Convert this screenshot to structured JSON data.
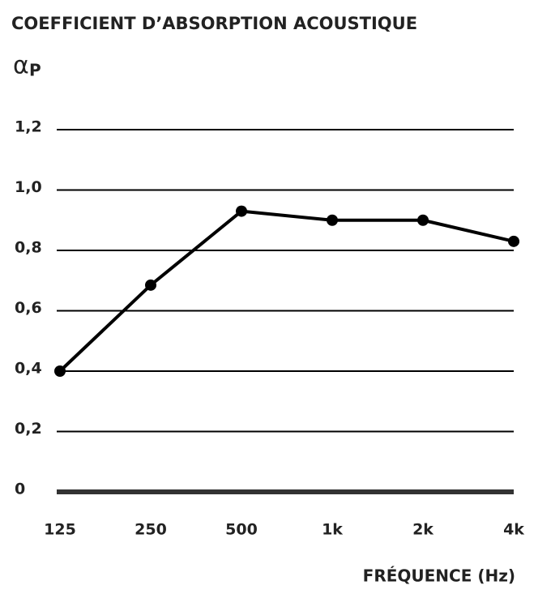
{
  "chart_data": {
    "type": "line",
    "title": "COEFFICIENT D’ABSORPTION ACOUSTIQUE",
    "ylabel": {
      "symbol": "α",
      "subscript": "P"
    },
    "xlabel": "FRÉQUENCE (Hz)",
    "categories": [
      "125",
      "250",
      "500",
      "1k",
      "2k",
      "4k"
    ],
    "values": [
      0.4,
      0.685,
      0.93,
      0.9,
      0.9,
      0.83
    ],
    "color": "#000000",
    "ylim": [
      0,
      1.2
    ],
    "yticks": [
      0,
      {
        "value": 0.2,
        "label": "0,2"
      },
      {
        "value": 0.4,
        "label": "0,4"
      },
      {
        "value": 0.6,
        "label": "0,6"
      },
      {
        "value": 0.8,
        "label": "0,8"
      },
      {
        "value": 1.0,
        "label": "1,0"
      },
      {
        "value": 1.2,
        "label": "1,2"
      }
    ],
    "grid": true
  }
}
